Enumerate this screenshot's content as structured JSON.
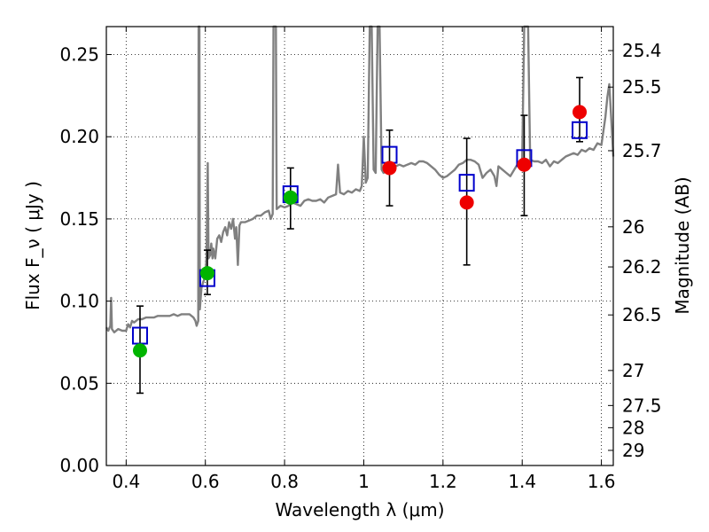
{
  "chart_data": {
    "type": "scatter",
    "xlabel": "Wavelength  λ (μm)",
    "ylabel": "Flux  F_ν  ( μJy )",
    "y2label": "Magnitude (AB)",
    "xlim": [
      0.35,
      1.63
    ],
    "ylim": [
      0.0,
      0.267
    ],
    "grid": true,
    "x_ticks": [
      0.4,
      0.6,
      0.8,
      1.0,
      1.2,
      1.4,
      1.6
    ],
    "x_tick_labels": [
      "0.4",
      "0.6",
      "0.8",
      "1",
      "1.2",
      "1.4",
      "1.6"
    ],
    "y_ticks": [
      0.0,
      0.05,
      0.1,
      0.15,
      0.2,
      0.25
    ],
    "y_tick_labels": [
      "0.00",
      "0.05",
      "0.10",
      "0.15",
      "0.20",
      "0.25"
    ],
    "mag_ticks": [
      {
        "label": "25.4",
        "flux": 0.2524
      },
      {
        "label": "25.5",
        "flux": 0.2302
      },
      {
        "label": "25.7",
        "flux": 0.1915
      },
      {
        "label": "26",
        "flux": 0.1452
      },
      {
        "label": "26.2",
        "flux": 0.1208
      },
      {
        "label": "26.5",
        "flux": 0.0916
      },
      {
        "label": "27",
        "flux": 0.0578
      },
      {
        "label": "27.5",
        "flux": 0.0365
      },
      {
        "label": "28",
        "flux": 0.023
      },
      {
        "label": "29",
        "flux": 0.0092
      }
    ],
    "spectrum": {
      "color": "#808080",
      "points": [
        [
          0.35,
          0.084
        ],
        [
          0.355,
          0.082
        ],
        [
          0.36,
          0.085
        ],
        [
          0.362,
          0.102
        ],
        [
          0.364,
          0.083
        ],
        [
          0.37,
          0.081
        ],
        [
          0.38,
          0.083
        ],
        [
          0.39,
          0.082
        ],
        [
          0.4,
          0.082
        ],
        [
          0.405,
          0.086
        ],
        [
          0.41,
          0.084
        ],
        [
          0.415,
          0.088
        ],
        [
          0.42,
          0.087
        ],
        [
          0.425,
          0.088
        ],
        [
          0.43,
          0.089
        ],
        [
          0.44,
          0.089
        ],
        [
          0.45,
          0.09
        ],
        [
          0.46,
          0.09
        ],
        [
          0.47,
          0.09
        ],
        [
          0.48,
          0.091
        ],
        [
          0.49,
          0.091
        ],
        [
          0.5,
          0.091
        ],
        [
          0.51,
          0.091
        ],
        [
          0.52,
          0.092
        ],
        [
          0.53,
          0.091
        ],
        [
          0.54,
          0.092
        ],
        [
          0.55,
          0.092
        ],
        [
          0.56,
          0.092
        ],
        [
          0.57,
          0.09
        ],
        [
          0.575,
          0.088
        ],
        [
          0.578,
          0.085
        ],
        [
          0.582,
          0.088
        ],
        [
          0.583,
          0.267
        ],
        [
          0.585,
          0.267
        ],
        [
          0.586,
          0.095
        ],
        [
          0.59,
          0.108
        ],
        [
          0.595,
          0.112
        ],
        [
          0.6,
          0.115
        ],
        [
          0.603,
          0.128
        ],
        [
          0.606,
          0.184
        ],
        [
          0.608,
          0.126
        ],
        [
          0.612,
          0.128
        ],
        [
          0.615,
          0.135
        ],
        [
          0.618,
          0.126
        ],
        [
          0.62,
          0.132
        ],
        [
          0.625,
          0.126
        ],
        [
          0.63,
          0.138
        ],
        [
          0.635,
          0.14
        ],
        [
          0.64,
          0.136
        ],
        [
          0.645,
          0.142
        ],
        [
          0.65,
          0.145
        ],
        [
          0.655,
          0.14
        ],
        [
          0.66,
          0.148
        ],
        [
          0.665,
          0.144
        ],
        [
          0.67,
          0.15
        ],
        [
          0.675,
          0.138
        ],
        [
          0.678,
          0.145
        ],
        [
          0.682,
          0.122
        ],
        [
          0.686,
          0.146
        ],
        [
          0.69,
          0.148
        ],
        [
          0.7,
          0.148
        ],
        [
          0.71,
          0.149
        ],
        [
          0.72,
          0.15
        ],
        [
          0.73,
          0.152
        ],
        [
          0.74,
          0.152
        ],
        [
          0.75,
          0.154
        ],
        [
          0.76,
          0.155
        ],
        [
          0.765,
          0.15
        ],
        [
          0.77,
          0.153
        ],
        [
          0.772,
          0.267
        ],
        [
          0.778,
          0.267
        ],
        [
          0.78,
          0.156
        ],
        [
          0.79,
          0.158
        ],
        [
          0.8,
          0.157
        ],
        [
          0.81,
          0.158
        ],
        [
          0.82,
          0.16
        ],
        [
          0.83,
          0.159
        ],
        [
          0.84,
          0.158
        ],
        [
          0.85,
          0.161
        ],
        [
          0.86,
          0.162
        ],
        [
          0.87,
          0.161
        ],
        [
          0.88,
          0.161
        ],
        [
          0.89,
          0.162
        ],
        [
          0.9,
          0.16
        ],
        [
          0.91,
          0.163
        ],
        [
          0.92,
          0.164
        ],
        [
          0.93,
          0.165
        ],
        [
          0.935,
          0.183
        ],
        [
          0.94,
          0.166
        ],
        [
          0.95,
          0.165
        ],
        [
          0.96,
          0.167
        ],
        [
          0.97,
          0.166
        ],
        [
          0.98,
          0.168
        ],
        [
          0.99,
          0.167
        ],
        [
          0.995,
          0.17
        ],
        [
          1.0,
          0.2
        ],
        [
          1.005,
          0.172
        ],
        [
          1.01,
          0.175
        ],
        [
          1.015,
          0.267
        ],
        [
          1.02,
          0.267
        ],
        [
          1.025,
          0.18
        ],
        [
          1.03,
          0.178
        ],
        [
          1.035,
          0.267
        ],
        [
          1.04,
          0.267
        ],
        [
          1.045,
          0.18
        ],
        [
          1.05,
          0.178
        ],
        [
          1.055,
          0.18
        ],
        [
          1.06,
          0.181
        ],
        [
          1.07,
          0.182
        ],
        [
          1.08,
          0.182
        ],
        [
          1.09,
          0.183
        ],
        [
          1.1,
          0.182
        ],
        [
          1.11,
          0.183
        ],
        [
          1.12,
          0.184
        ],
        [
          1.13,
          0.183
        ],
        [
          1.14,
          0.185
        ],
        [
          1.15,
          0.185
        ],
        [
          1.16,
          0.184
        ],
        [
          1.17,
          0.182
        ],
        [
          1.18,
          0.18
        ],
        [
          1.19,
          0.177
        ],
        [
          1.2,
          0.175
        ],
        [
          1.21,
          0.176
        ],
        [
          1.22,
          0.178
        ],
        [
          1.23,
          0.18
        ],
        [
          1.24,
          0.183
        ],
        [
          1.25,
          0.184
        ],
        [
          1.26,
          0.186
        ],
        [
          1.27,
          0.186
        ],
        [
          1.28,
          0.185
        ],
        [
          1.29,
          0.183
        ],
        [
          1.3,
          0.175
        ],
        [
          1.31,
          0.178
        ],
        [
          1.32,
          0.18
        ],
        [
          1.33,
          0.176
        ],
        [
          1.335,
          0.17
        ],
        [
          1.34,
          0.182
        ],
        [
          1.35,
          0.18
        ],
        [
          1.36,
          0.178
        ],
        [
          1.37,
          0.176
        ],
        [
          1.38,
          0.18
        ],
        [
          1.39,
          0.184
        ],
        [
          1.4,
          0.186
        ],
        [
          1.405,
          0.267
        ],
        [
          1.415,
          0.267
        ],
        [
          1.42,
          0.186
        ],
        [
          1.43,
          0.185
        ],
        [
          1.44,
          0.185
        ],
        [
          1.45,
          0.184
        ],
        [
          1.46,
          0.186
        ],
        [
          1.47,
          0.182
        ],
        [
          1.48,
          0.185
        ],
        [
          1.49,
          0.184
        ],
        [
          1.5,
          0.186
        ],
        [
          1.51,
          0.188
        ],
        [
          1.52,
          0.189
        ],
        [
          1.53,
          0.19
        ],
        [
          1.54,
          0.189
        ],
        [
          1.55,
          0.192
        ],
        [
          1.56,
          0.191
        ],
        [
          1.57,
          0.193
        ],
        [
          1.58,
          0.192
        ],
        [
          1.59,
          0.196
        ],
        [
          1.6,
          0.195
        ],
        [
          1.61,
          0.212
        ],
        [
          1.615,
          0.224
        ],
        [
          1.62,
          0.232
        ],
        [
          1.625,
          0.21
        ],
        [
          1.63,
          0.188
        ]
      ]
    },
    "model_boxes": {
      "color": "#0000cc",
      "x": [
        0.435,
        0.605,
        0.815,
        1.065,
        1.26,
        1.405,
        1.545
      ],
      "y": [
        0.079,
        0.114,
        0.165,
        0.189,
        0.172,
        0.187,
        0.204
      ]
    },
    "observed": [
      {
        "x": 0.435,
        "y": 0.07,
        "err_low": 0.044,
        "err_high": 0.097,
        "color": "#00b400"
      },
      {
        "x": 0.605,
        "y": 0.117,
        "err_low": 0.104,
        "err_high": 0.131,
        "color": "#00b400"
      },
      {
        "x": 0.815,
        "y": 0.163,
        "err_low": 0.144,
        "err_high": 0.181,
        "color": "#00b400"
      },
      {
        "x": 1.065,
        "y": 0.181,
        "err_low": 0.158,
        "err_high": 0.204,
        "color": "#ee0000"
      },
      {
        "x": 1.26,
        "y": 0.16,
        "err_low": 0.122,
        "err_high": 0.199,
        "color": "#ee0000"
      },
      {
        "x": 1.405,
        "y": 0.183,
        "err_low": 0.152,
        "err_high": 0.213,
        "color": "#ee0000"
      },
      {
        "x": 1.545,
        "y": 0.215,
        "err_low": 0.197,
        "err_high": 0.236,
        "color": "#ee0000"
      }
    ]
  }
}
